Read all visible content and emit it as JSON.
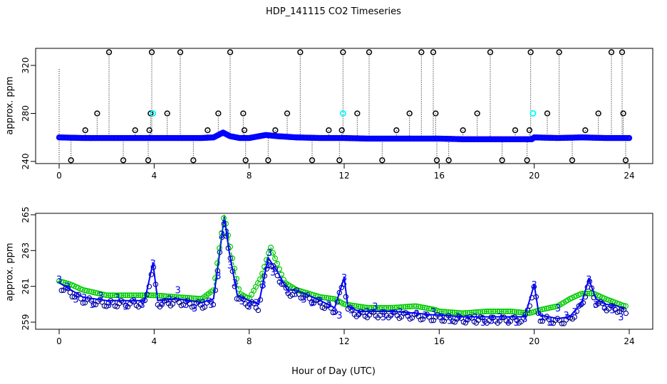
{
  "title": "HDP_141115  CO2 Timeseries",
  "xlabel": "Hour of Day (UTC)",
  "colors": {
    "raw": "#0000ff",
    "flag": "#00ffff",
    "axis": "#000000",
    "green": "#00cc00",
    "darkblue": "#00008b"
  },
  "chart_data": [
    {
      "type": "scatter",
      "panel": "top",
      "ylabel": "approx. ppm",
      "xlim": [
        0,
        24
      ],
      "ylim": [
        240,
        330
      ],
      "xticks": [
        0,
        4,
        8,
        12,
        16,
        20,
        24
      ],
      "yticks": [
        240,
        280,
        320
      ],
      "grid": false,
      "baseline": {
        "name": "raw",
        "x": [
          0,
          1,
          2,
          3,
          4,
          5,
          6,
          6.5,
          6.9,
          7.2,
          7.6,
          8,
          8.7,
          9.2,
          10,
          11,
          12,
          13,
          14,
          15,
          15.9,
          16,
          17,
          18,
          19,
          19.9,
          20,
          21,
          22,
          23,
          23.9
        ],
        "y": [
          260,
          259.5,
          259.5,
          259.5,
          259.5,
          259.5,
          259.5,
          260,
          264,
          261,
          259.5,
          259.5,
          262,
          261,
          260,
          259.5,
          259.5,
          259,
          259,
          259,
          259,
          259,
          258.5,
          258.5,
          258.5,
          258.5,
          260,
          259.5,
          260,
          259.5,
          259.5
        ]
      },
      "outliers": {
        "x": [
          0.5,
          1.1,
          1.6,
          2.1,
          2.7,
          3.2,
          3.75,
          3.8,
          3.85,
          3.9,
          4.55,
          5.1,
          5.65,
          6.25,
          6.7,
          7.2,
          7.75,
          7.8,
          7.85,
          8.8,
          9.1,
          9.6,
          10.15,
          10.65,
          11.35,
          11.8,
          11.9,
          11.95,
          12.55,
          13.05,
          13.6,
          14.2,
          14.75,
          15.25,
          15.75,
          15.85,
          15.9,
          16.4,
          17.0,
          17.6,
          18.15,
          18.65,
          19.2,
          19.7,
          19.8,
          19.85,
          20.55,
          21.05,
          21.6,
          22.15,
          22.7,
          23.25,
          23.7,
          23.75,
          23.85
        ],
        "y": [
          241,
          266,
          280,
          331,
          241,
          266,
          241,
          266,
          280,
          331,
          280,
          331,
          241,
          266,
          280,
          331,
          280,
          266,
          241,
          241,
          266,
          280,
          331,
          241,
          266,
          241,
          266,
          331,
          280,
          331,
          241,
          266,
          280,
          331,
          331,
          280,
          241,
          241,
          266,
          280,
          331,
          241,
          266,
          241,
          266,
          331,
          280,
          331,
          241,
          266,
          280,
          331,
          331,
          280,
          241
        ]
      },
      "flagged": {
        "x": [
          3.95,
          11.95,
          19.95
        ],
        "y": [
          280,
          280,
          280
        ]
      }
    },
    {
      "type": "line",
      "panel": "bottom",
      "ylabel": "approx. ppm",
      "xlim": [
        0,
        24
      ],
      "ylim": [
        259,
        265
      ],
      "xticks": [
        0,
        4,
        8,
        12,
        16,
        20,
        24
      ],
      "yticks": [
        259,
        261,
        263,
        265
      ],
      "grid": false,
      "series": [
        {
          "color": "#0000ff",
          "x": [
            0,
            0.5,
            1,
            2,
            3,
            3.6,
            3.95,
            4.15,
            5,
            6,
            6.5,
            6.75,
            6.95,
            7.15,
            7.5,
            8,
            8.4,
            8.8,
            9.2,
            9.6,
            10,
            11,
            11.6,
            12,
            12.15,
            12.6,
            13,
            14,
            15,
            15.8,
            16,
            17,
            18,
            19,
            19.6,
            20,
            20.2,
            21,
            21.5,
            22,
            22.3,
            22.6,
            23,
            23.5,
            23.8
          ],
          "y": [
            261.2,
            260.8,
            260.4,
            260.2,
            260.2,
            260.2,
            262.3,
            260.2,
            260.3,
            260.1,
            260.3,
            262.8,
            264.9,
            263.0,
            260.5,
            260.2,
            260.0,
            262.6,
            261.8,
            260.8,
            260.8,
            260.2,
            259.8,
            261.5,
            259.9,
            259.6,
            259.6,
            259.6,
            259.5,
            259.4,
            259.4,
            259.3,
            259.3,
            259.3,
            259.3,
            261.1,
            259.4,
            259.2,
            259.3,
            260.1,
            261.4,
            260.3,
            260.0,
            259.9,
            259.7
          ]
        },
        {
          "color": "#00cc00",
          "x": [
            0,
            0.5,
            1,
            2,
            3,
            4,
            5,
            6,
            6.5,
            6.95,
            7.3,
            7.6,
            8,
            8.5,
            8.9,
            9.5,
            10,
            11,
            11.6,
            12,
            13,
            14,
            15,
            15.8,
            16,
            17,
            18,
            19,
            19.8,
            20.3,
            21,
            21.5,
            22,
            22.5,
            23,
            23.8
          ],
          "y": [
            261.3,
            261.1,
            260.8,
            260.5,
            260.5,
            260.5,
            260.4,
            260.3,
            260.8,
            265.0,
            262.5,
            260.6,
            260.3,
            261.5,
            263.2,
            261.2,
            260.8,
            260.4,
            260.3,
            260.0,
            259.8,
            259.8,
            259.9,
            259.7,
            259.6,
            259.5,
            259.6,
            259.6,
            259.5,
            259.7,
            259.9,
            260.3,
            260.6,
            260.6,
            260.3,
            259.9
          ]
        }
      ],
      "labels": {
        "text": "3",
        "x": [
          0,
          0.35,
          0.7,
          1.05,
          1.4,
          1.75,
          2.1,
          2.45,
          2.8,
          3.15,
          3.5,
          3.95,
          4.3,
          4.65,
          5.0,
          5.35,
          5.7,
          6.05,
          6.4,
          6.7,
          6.85,
          6.95,
          7.05,
          7.2,
          7.4,
          7.7,
          8.0,
          8.3,
          8.6,
          8.75,
          8.85,
          9.0,
          9.3,
          9.6,
          9.95,
          10.3,
          10.65,
          11.0,
          11.35,
          11.6,
          11.8,
          12.0,
          12.3,
          12.6,
          12.95,
          13.3,
          13.65,
          14.0,
          14.35,
          14.7,
          15.05,
          15.4,
          15.75,
          16.1,
          16.45,
          16.8,
          17.15,
          17.5,
          17.85,
          18.2,
          18.55,
          18.9,
          19.25,
          19.6,
          20.0,
          20.3,
          20.65,
          21.0,
          21.35,
          21.7,
          22.0,
          22.3,
          22.6,
          22.95,
          23.3,
          23.65
        ],
        "y": [
          261.4,
          261.0,
          260.3,
          260.4,
          260.0,
          260.5,
          260.0,
          260.4,
          259.9,
          260.2,
          260.0,
          262.3,
          260.1,
          260.3,
          260.8,
          260.0,
          259.8,
          260.1,
          260.0,
          261.6,
          263.9,
          264.5,
          264.0,
          262.2,
          261.2,
          260.2,
          259.9,
          260.1,
          261.1,
          262.2,
          262.9,
          261.8,
          261.3,
          260.8,
          260.6,
          260.3,
          260.1,
          260.2,
          260.0,
          259.6,
          259.4,
          261.5,
          259.7,
          259.5,
          259.6,
          259.9,
          259.3,
          259.5,
          259.6,
          259.4,
          259.5,
          259.4,
          259.6,
          259.3,
          259.1,
          259.3,
          259.2,
          259.3,
          259.0,
          259.1,
          259.3,
          259.1,
          259.0,
          259.2,
          261.1,
          259.3,
          259.0,
          259.8,
          259.4,
          259.6,
          260.1,
          261.4,
          260.0,
          259.9,
          259.7,
          259.3
        ]
      }
    }
  ]
}
